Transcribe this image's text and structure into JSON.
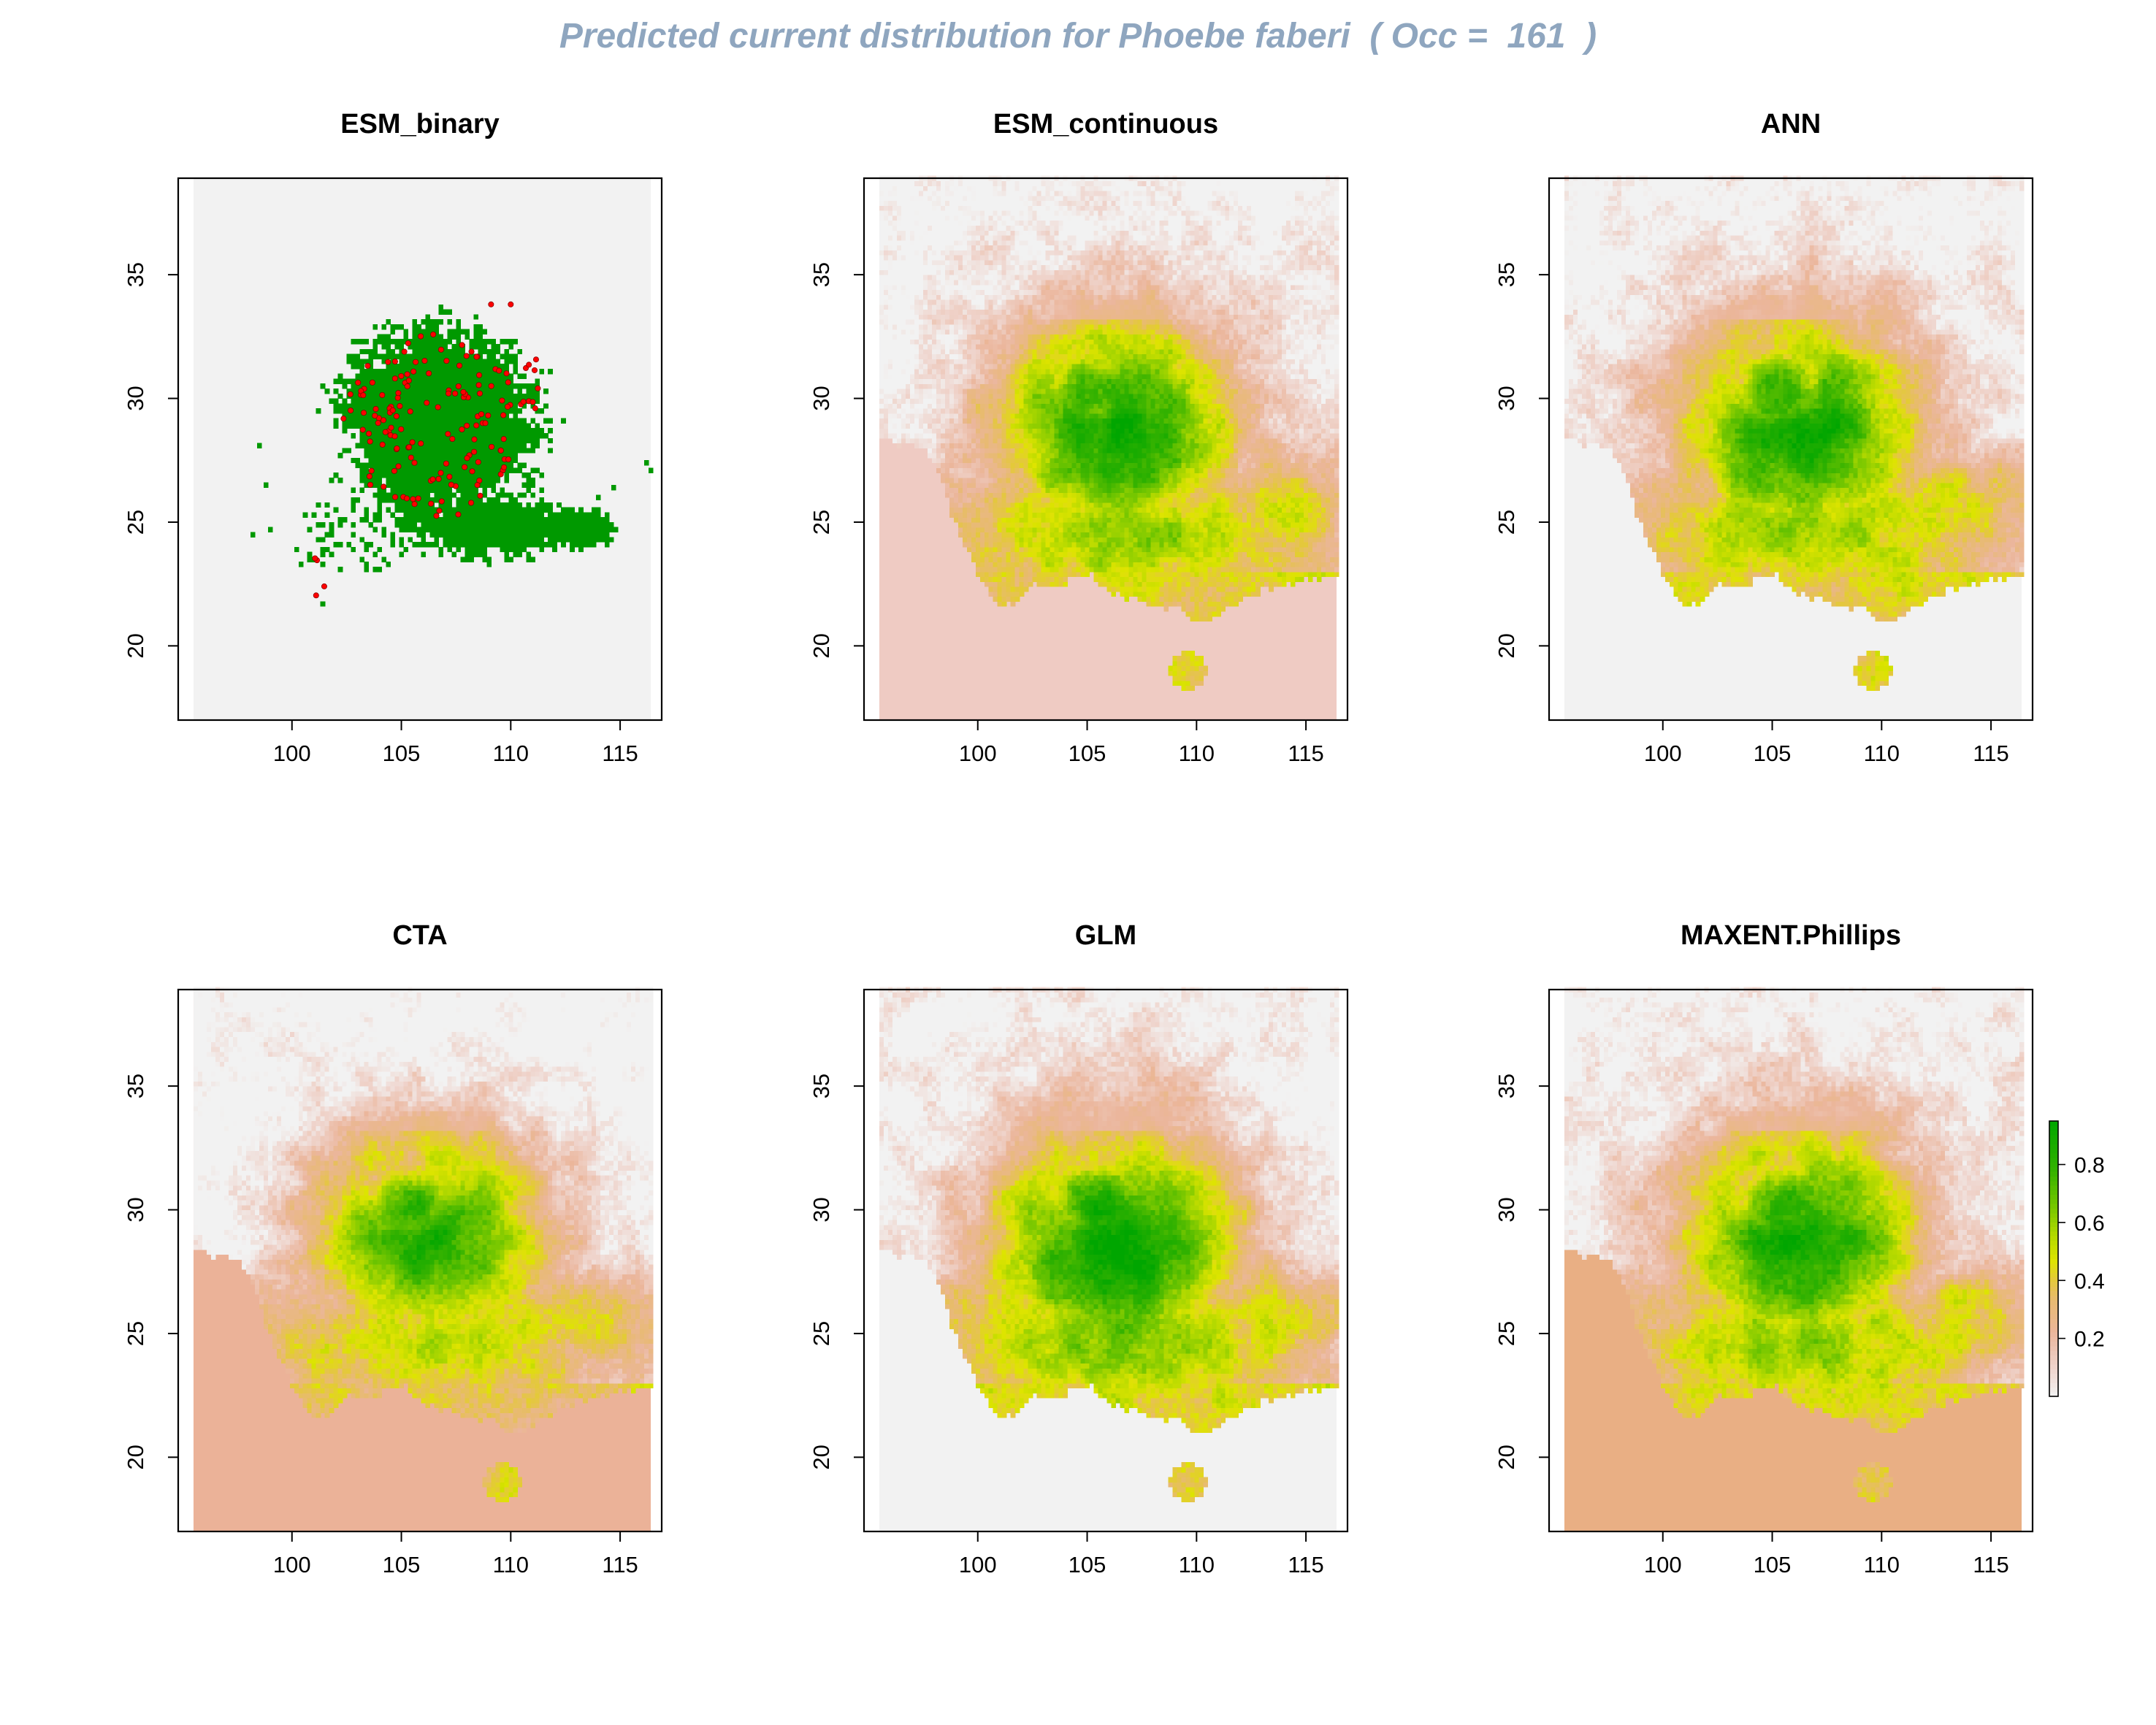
{
  "page": {
    "title": "Predicted current distribution for Phoebe faberi  ( Occ =  161  )"
  },
  "chart_data": [
    {
      "type": "heatmap",
      "title": "ESM_binary",
      "render": "binary",
      "x_ticks": [
        100,
        105,
        110,
        115
      ],
      "y_ticks": [
        20,
        25,
        30,
        35
      ],
      "xlim": [
        94.8,
        116.9
      ],
      "ylim": [
        17.0,
        38.9
      ],
      "background_color": "#f2f2f2",
      "presence_color": "#009900",
      "occurrence_color": "#ff0000"
    },
    {
      "type": "heatmap",
      "title": "ESM_continuous",
      "render": "continuous",
      "x_ticks": [
        100,
        105,
        110,
        115
      ],
      "y_ticks": [
        20,
        25,
        30,
        35
      ],
      "xlim": [
        94.8,
        116.9
      ],
      "ylim": [
        17.0,
        38.9
      ],
      "outside_color": "#efcbc3"
    },
    {
      "type": "heatmap",
      "title": "ANN",
      "render": "continuous",
      "x_ticks": [
        100,
        105,
        110,
        115
      ],
      "y_ticks": [
        20,
        25,
        30,
        35
      ],
      "xlim": [
        94.8,
        116.9
      ],
      "ylim": [
        17.0,
        38.9
      ],
      "outside_color": "#f2f2f2"
    },
    {
      "type": "heatmap",
      "title": "CTA",
      "render": "continuous",
      "x_ticks": [
        100,
        105,
        110,
        115
      ],
      "y_ticks": [
        20,
        25,
        30,
        35
      ],
      "xlim": [
        94.8,
        116.9
      ],
      "ylim": [
        17.0,
        38.9
      ],
      "outside_color": "#ebb298"
    },
    {
      "type": "heatmap",
      "title": "GLM",
      "render": "continuous",
      "x_ticks": [
        100,
        105,
        110,
        115
      ],
      "y_ticks": [
        20,
        25,
        30,
        35
      ],
      "xlim": [
        94.8,
        116.9
      ],
      "ylim": [
        17.0,
        38.9
      ],
      "outside_color": "#f2f2f2"
    },
    {
      "type": "heatmap",
      "title": "MAXENT.Phillips",
      "render": "continuous",
      "x_ticks": [
        100,
        105,
        110,
        115
      ],
      "y_ticks": [
        20,
        25,
        30,
        35
      ],
      "xlim": [
        94.8,
        116.9
      ],
      "ylim": [
        17.0,
        38.9
      ],
      "outside_color": "#e9af84",
      "legend": {
        "ticks": [
          "0.2",
          "0.4",
          "0.6",
          "0.8"
        ],
        "tick_values": [
          0.2,
          0.4,
          0.6,
          0.8
        ],
        "range": [
          0.0,
          0.95
        ],
        "colors": [
          "#f2f2f2",
          "#efd0c8",
          "#ebb298",
          "#e8b872",
          "#e4d236",
          "#dfe600",
          "#b0d800",
          "#6fc400",
          "#2fb200",
          "#00a600"
        ]
      }
    }
  ]
}
